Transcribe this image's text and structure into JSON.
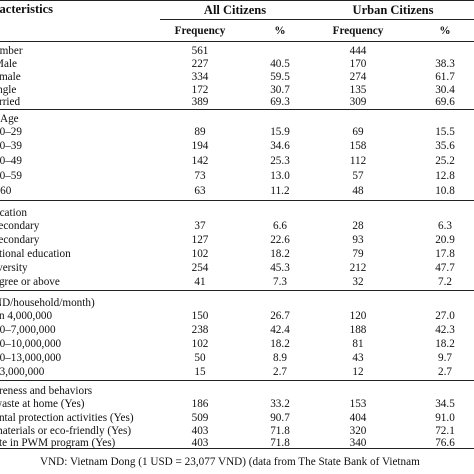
{
  "header": {
    "characteristics": "racteristics",
    "all_citizens": "All Citizens",
    "urban_citizens": "Urban Citizens",
    "frequency": "Frequency",
    "percent": "%"
  },
  "sections": [
    {
      "title": "",
      "rows": [
        {
          "label": "umber",
          "all_f": "561",
          "all_p": "",
          "urb_f": "444",
          "urb_p": ""
        },
        {
          "label": "Male",
          "all_f": "227",
          "all_p": "40.5",
          "urb_f": "170",
          "urb_p": "38.3"
        },
        {
          "label": "emale",
          "all_f": "334",
          "all_p": "59.5",
          "urb_f": "274",
          "urb_p": "61.7"
        },
        {
          "label": "ingle",
          "all_f": "172",
          "all_p": "30.7",
          "urb_f": "135",
          "urb_p": "30.4"
        },
        {
          "label": "arried",
          "all_f": "389",
          "all_p": "69.3",
          "urb_f": "309",
          "urb_p": "69.6"
        }
      ]
    },
    {
      "title": "Age",
      "rows": [
        {
          "label": "20–29",
          "all_f": "89",
          "all_p": "15.9",
          "urb_f": "69",
          "urb_p": "15.5"
        },
        {
          "label": "30–39",
          "all_f": "194",
          "all_p": "34.6",
          "urb_f": "158",
          "urb_p": "35.6"
        },
        {
          "label": "40–49",
          "all_f": "142",
          "all_p": "25.3",
          "urb_f": "112",
          "urb_p": "25.2"
        },
        {
          "label": "50–59",
          "all_f": "73",
          "all_p": "13.0",
          "urb_f": "57",
          "urb_p": "12.8"
        },
        {
          "label": "≥60",
          "all_f": "63",
          "all_p": "11.2",
          "urb_f": "48",
          "urb_p": "10.8"
        }
      ]
    },
    {
      "title": "ucation",
      "rows": [
        {
          "label": "secondary",
          "all_f": "37",
          "all_p": "6.6",
          "urb_f": "28",
          "urb_p": "6.3"
        },
        {
          "label": "secondary",
          "all_f": "127",
          "all_p": "22.6",
          "urb_f": "93",
          "urb_p": "20.9"
        },
        {
          "label": "ational education",
          "all_f": "102",
          "all_p": "18.2",
          "urb_f": "79",
          "urb_p": "17.8"
        },
        {
          "label": "iversity",
          "all_f": "254",
          "all_p": "45.3",
          "urb_f": "212",
          "urb_p": "47.7"
        },
        {
          "label": "egree or above",
          "all_f": "41",
          "all_p": "7.3",
          "urb_f": "32",
          "urb_p": "7.2"
        }
      ]
    },
    {
      "title": "ND/household/month)",
      "rows": [
        {
          "label": "an 4,000,000",
          "all_f": "150",
          "all_p": "26.7",
          "urb_f": "120",
          "urb_p": "27.0"
        },
        {
          "label": "00–7,000,000",
          "all_f": "238",
          "all_p": "42.4",
          "urb_f": "188",
          "urb_p": "42.3"
        },
        {
          "label": "00–10,000,000",
          "all_f": "102",
          "all_p": "18.2",
          "urb_f": "81",
          "urb_p": "18.2"
        },
        {
          "label": "00–13,000,000",
          "all_f": "50",
          "all_p": "8.9",
          "urb_f": "43",
          "urb_p": "9.7"
        },
        {
          "label": "13,000,000",
          "all_f": "15",
          "all_p": "2.7",
          "urb_f": "12",
          "urb_p": "2.7"
        }
      ]
    },
    {
      "title": "areness and behaviors",
      "rows": [
        {
          "label": "waste at home (Yes)",
          "all_f": "186",
          "all_p": "33.2",
          "urb_f": "153",
          "urb_p": "34.5"
        },
        {
          "label": "ental protection activities (Yes)",
          "all_f": "509",
          "all_p": "90.7",
          "urb_f": "404",
          "urb_p": "91.0"
        },
        {
          "label": "materials or eco-friendly (Yes)",
          "all_f": "403",
          "all_p": "71.8",
          "urb_f": "320",
          "urb_p": "72.1"
        },
        {
          "label": "ate in PWM program (Yes)",
          "all_f": "403",
          "all_p": "71.8",
          "urb_f": "340",
          "urb_p": "76.6"
        }
      ]
    }
  ],
  "footnote": "VND: Vietnam Dong (1 USD = 23,077 VND) (data from The State Bank of Vietnam"
}
